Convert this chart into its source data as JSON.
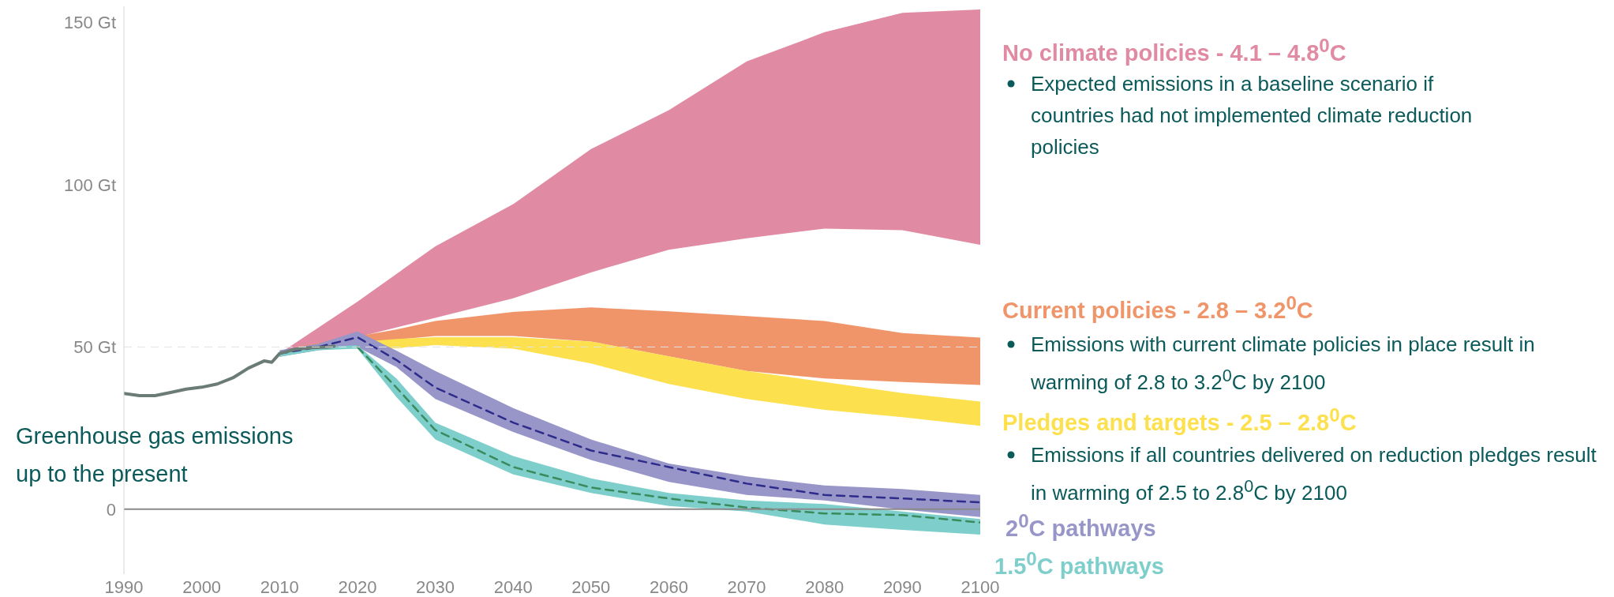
{
  "chart_data": {
    "type": "line",
    "xlim": [
      1990,
      2100
    ],
    "xticks": [
      1990,
      2000,
      2010,
      2020,
      2030,
      2040,
      2050,
      2060,
      2070,
      2080,
      2090,
      2100
    ],
    "ylim": [
      -20,
      155
    ],
    "yticks": [
      {
        "value": 0,
        "label": "0"
      },
      {
        "value": 50,
        "label": "50 Gt"
      },
      {
        "value": 100,
        "label": "100 Gt"
      },
      {
        "value": 150,
        "label": "150 Gt"
      }
    ],
    "grid": false,
    "legend": false,
    "ref_lines": [
      {
        "axis": "y",
        "value": 0,
        "label": null,
        "color": "#8a8a8a",
        "line_style": "solid"
      },
      {
        "axis": "y",
        "value": 50,
        "label": null,
        "color": "#e2e2e2",
        "line_style": "dashed"
      }
    ],
    "series": [
      {
        "name": "No climate policies - 4.1 – 4.8$^{0}$C",
        "color": "#e08ba3",
        "x": [
          2010,
          2020,
          2030,
          2040,
          2050,
          2060,
          2070,
          2080,
          2090,
          2100
        ],
        "values": [
          null,
          null,
          null,
          null,
          null,
          null,
          null,
          null,
          null,
          null
        ],
        "upper": [
          48,
          64,
          81,
          94,
          111,
          123,
          138,
          147,
          153,
          154
        ],
        "lower": [
          48,
          53,
          59,
          65,
          73,
          80,
          83.5,
          86.5,
          86,
          81.5
        ]
      },
      {
        "name": "Current policies - 2.8 – 3.2$^{0}$C",
        "color": "#f0956a",
        "x": [
          2012,
          2025,
          2030,
          2040,
          2050,
          2060,
          2070,
          2080,
          2090,
          2100
        ],
        "values": [
          null,
          null,
          null,
          null,
          null,
          null,
          null,
          null,
          null,
          null
        ],
        "upper": [
          50,
          55.4,
          58,
          60.8,
          62.2,
          61,
          59.5,
          58,
          54.3,
          52.9
        ],
        "lower": [
          50,
          52.3,
          53.4,
          53.4,
          51.7,
          47.1,
          42.6,
          40.3,
          39.2,
          38.3
        ]
      },
      {
        "name": "Pledges and targets - 2.5 – 2.8$^{0}$C",
        "color": "#fde04d",
        "x": [
          2012,
          2025,
          2030,
          2040,
          2050,
          2060,
          2070,
          2080,
          2090,
          2100
        ],
        "values": [
          null,
          null,
          null,
          null,
          null,
          null,
          null,
          null,
          null,
          null
        ],
        "upper": [
          50,
          52.5,
          53,
          53,
          51.7,
          47.1,
          42.6,
          39.2,
          35.8,
          33.2
        ],
        "lower": [
          50,
          49.6,
          50.6,
          49.5,
          44.9,
          38.6,
          34,
          30.6,
          28.4,
          25.7
        ]
      },
      {
        "name": "2$^{0}$C pathways",
        "color": "#9896c8",
        "x": [
          2010,
          2015,
          2020,
          2025,
          2030,
          2040,
          2050,
          2060,
          2070,
          2080,
          2090,
          2100
        ],
        "values": [
          null,
          null,
          null,
          null,
          null,
          null,
          null,
          null,
          null,
          null,
          null,
          null
        ],
        "upper": [
          49,
          51,
          54.8,
          48.9,
          42.6,
          31.2,
          21.5,
          14.1,
          10.1,
          7.3,
          6.2,
          4.4
        ],
        "lower": [
          47,
          49,
          50,
          43.8,
          34,
          23.8,
          15.2,
          8.4,
          4.4,
          2.7,
          -0.1,
          -2.4
        ]
      },
      {
        "name": "1.5$^{0}$C pathways",
        "color": "#7ecfcc",
        "x": [
          2010,
          2015,
          2020,
          2025,
          2030,
          2040,
          2050,
          2060,
          2070,
          2080,
          2090,
          2100
        ],
        "values": [
          null,
          null,
          null,
          null,
          null,
          null,
          null,
          null,
          null,
          null,
          null,
          null
        ],
        "upper": [
          48,
          50,
          50.5,
          40.3,
          26.7,
          16.4,
          9.5,
          5,
          2.7,
          1.6,
          -0.7,
          -3
        ],
        "lower": [
          47,
          49,
          49.5,
          34.6,
          21.5,
          10.7,
          5,
          1,
          -0.7,
          -4.7,
          -6.4,
          -7.8
        ]
      },
      {
        "color": "#2e2c8a",
        "line_style": "dashed",
        "x": [
          2010,
          2015,
          2020,
          2025,
          2030,
          2040,
          2050,
          2060,
          2070,
          2080,
          2090,
          2100
        ],
        "values": [
          48,
          50,
          53,
          46,
          37.5,
          26.7,
          18.1,
          13,
          7.9,
          4.4,
          3.3,
          2.1
        ]
      },
      {
        "color": "#3a8a5c",
        "line_style": "dashed",
        "x": [
          2020,
          2025,
          2030,
          2040,
          2050,
          2060,
          2070,
          2080,
          2090,
          2100
        ],
        "values": [
          50,
          37.5,
          24.4,
          13,
          6.7,
          3.3,
          0.5,
          -1.3,
          -1.8,
          -4.1
        ]
      },
      {
        "name": "Greenhouse gas emissions up to the present",
        "color": "#6b7b76",
        "line_style": "solid",
        "x": [
          1990,
          1992,
          1994,
          1996,
          1998,
          2000,
          2002,
          2004,
          2006,
          2008,
          2009,
          2010,
          2012,
          2014,
          2016,
          2017
        ],
        "values": [
          35.7,
          35,
          35,
          36,
          37,
          37.6,
          38.6,
          40.5,
          43.5,
          45.7,
          45.3,
          48,
          49.3,
          49.8,
          50,
          50.2
        ]
      }
    ],
    "annotations": [
      "Expected emissions in a baseline scenario if countries had not implemented climate reduction policies",
      "Emissions with current climate policies in place result in warming of 2.8 to 3.2$^{0}$C by 2100",
      "Emissions if all countries delivered on reduction pledges result in warming of 2.5 to 2.8$^{0}$C by 2100"
    ]
  }
}
